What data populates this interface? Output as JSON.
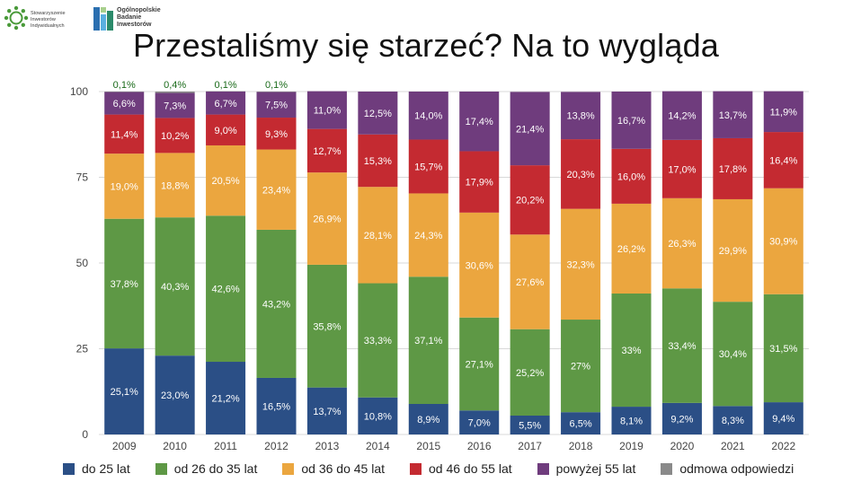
{
  "header": {
    "logo_sii_lines": [
      "Stowarzyszenie",
      "Inwestorów",
      "Indywidualnych"
    ],
    "logo_obi_lines": [
      "Ogólnopolskie",
      "Badanie",
      "Inwestorów"
    ]
  },
  "chart_data": {
    "type": "bar",
    "stacked": true,
    "title": "Przestaliśmy się starzeć? Na to wygląda",
    "categories": [
      "2009",
      "2010",
      "2011",
      "2012",
      "2013",
      "2014",
      "2015",
      "2016",
      "2017",
      "2018",
      "2019",
      "2020",
      "2021",
      "2022"
    ],
    "ylim": [
      0,
      100
    ],
    "yticks": [
      "0",
      "25",
      "50",
      "75",
      "100"
    ],
    "ytick_values": [
      0,
      25,
      50,
      75,
      100
    ],
    "grid": true,
    "legend_position": "bottom",
    "series": [
      {
        "name": "do 25 lat",
        "color": "#2b4f86",
        "values": [
          25.1,
          23.0,
          21.2,
          16.5,
          13.7,
          10.8,
          8.9,
          7.0,
          5.5,
          6.5,
          8.1,
          9.2,
          8.3,
          9.4
        ],
        "labels": [
          "25,1%",
          "23,0%",
          "21,2%",
          "16,5%",
          "13,7%",
          "10,8%",
          "8,9%",
          "7,0%",
          "5,5%",
          "6,5%",
          "8,1%",
          "9,2%",
          "8,3%",
          "9,4%"
        ]
      },
      {
        "name": "od 26 do 35 lat",
        "color": "#5e9845",
        "values": [
          37.8,
          40.3,
          42.6,
          43.2,
          35.8,
          33.3,
          37.1,
          27.1,
          25.2,
          27,
          33,
          33.4,
          30.4,
          31.5
        ],
        "labels": [
          "37,8%",
          "40,3%",
          "42,6%",
          "43,2%",
          "35,8%",
          "33,3%",
          "37,1%",
          "27,1%",
          "25,2%",
          "27%",
          "33%",
          "33,4%",
          "30,4%",
          "31,5%"
        ]
      },
      {
        "name": "od 36 do 45 lat",
        "color": "#eba63f",
        "values": [
          19.0,
          18.8,
          20.5,
          23.4,
          26.9,
          28.1,
          24.3,
          30.6,
          27.6,
          32.3,
          26.2,
          26.3,
          29.9,
          30.9
        ],
        "labels": [
          "19,0%",
          "18,8%",
          "20,5%",
          "23,4%",
          "26,9%",
          "28,1%",
          "24,3%",
          "30,6%",
          "27,6%",
          "32,3%",
          "26,2%",
          "26,3%",
          "29,9%",
          "30,9%"
        ]
      },
      {
        "name": "od 46 do 55 lat",
        "color": "#c42a31",
        "values": [
          11.4,
          10.2,
          9.0,
          9.3,
          12.7,
          15.3,
          15.7,
          17.9,
          20.2,
          20.3,
          16.0,
          17.0,
          17.8,
          16.4
        ],
        "labels": [
          "11,4%",
          "10,2%",
          "9,0%",
          "9,3%",
          "12,7%",
          "15,3%",
          "15,7%",
          "17,9%",
          "20,2%",
          "20,3%",
          "16,0%",
          "17,0%",
          "17,8%",
          "16,4%"
        ]
      },
      {
        "name": "powyżej 55 lat",
        "color": "#6f3c7d",
        "values": [
          6.6,
          7.3,
          6.7,
          7.5,
          11.0,
          12.5,
          14.0,
          17.4,
          21.4,
          13.8,
          16.7,
          14.2,
          13.7,
          11.9
        ],
        "labels": [
          "6,6%",
          "7,3%",
          "6,7%",
          "7,5%",
          "11,0%",
          "12,5%",
          "14,0%",
          "17,4%",
          "21,4%",
          "13,8%",
          "16,7%",
          "14,2%",
          "13,7%",
          "11,9%"
        ]
      },
      {
        "name": "odmowa odpowiedzi",
        "color": "#8a8a8a",
        "values": [
          0.1,
          0.4,
          0.1,
          0.1,
          0,
          0,
          0,
          0,
          0,
          0,
          0,
          0,
          0,
          0
        ],
        "labels": [
          "0,1%",
          "0,4%",
          "0,1%",
          "0,1%",
          "",
          "",
          "",
          "",
          "",
          "",
          "",
          "",
          "",
          ""
        ]
      }
    ]
  }
}
